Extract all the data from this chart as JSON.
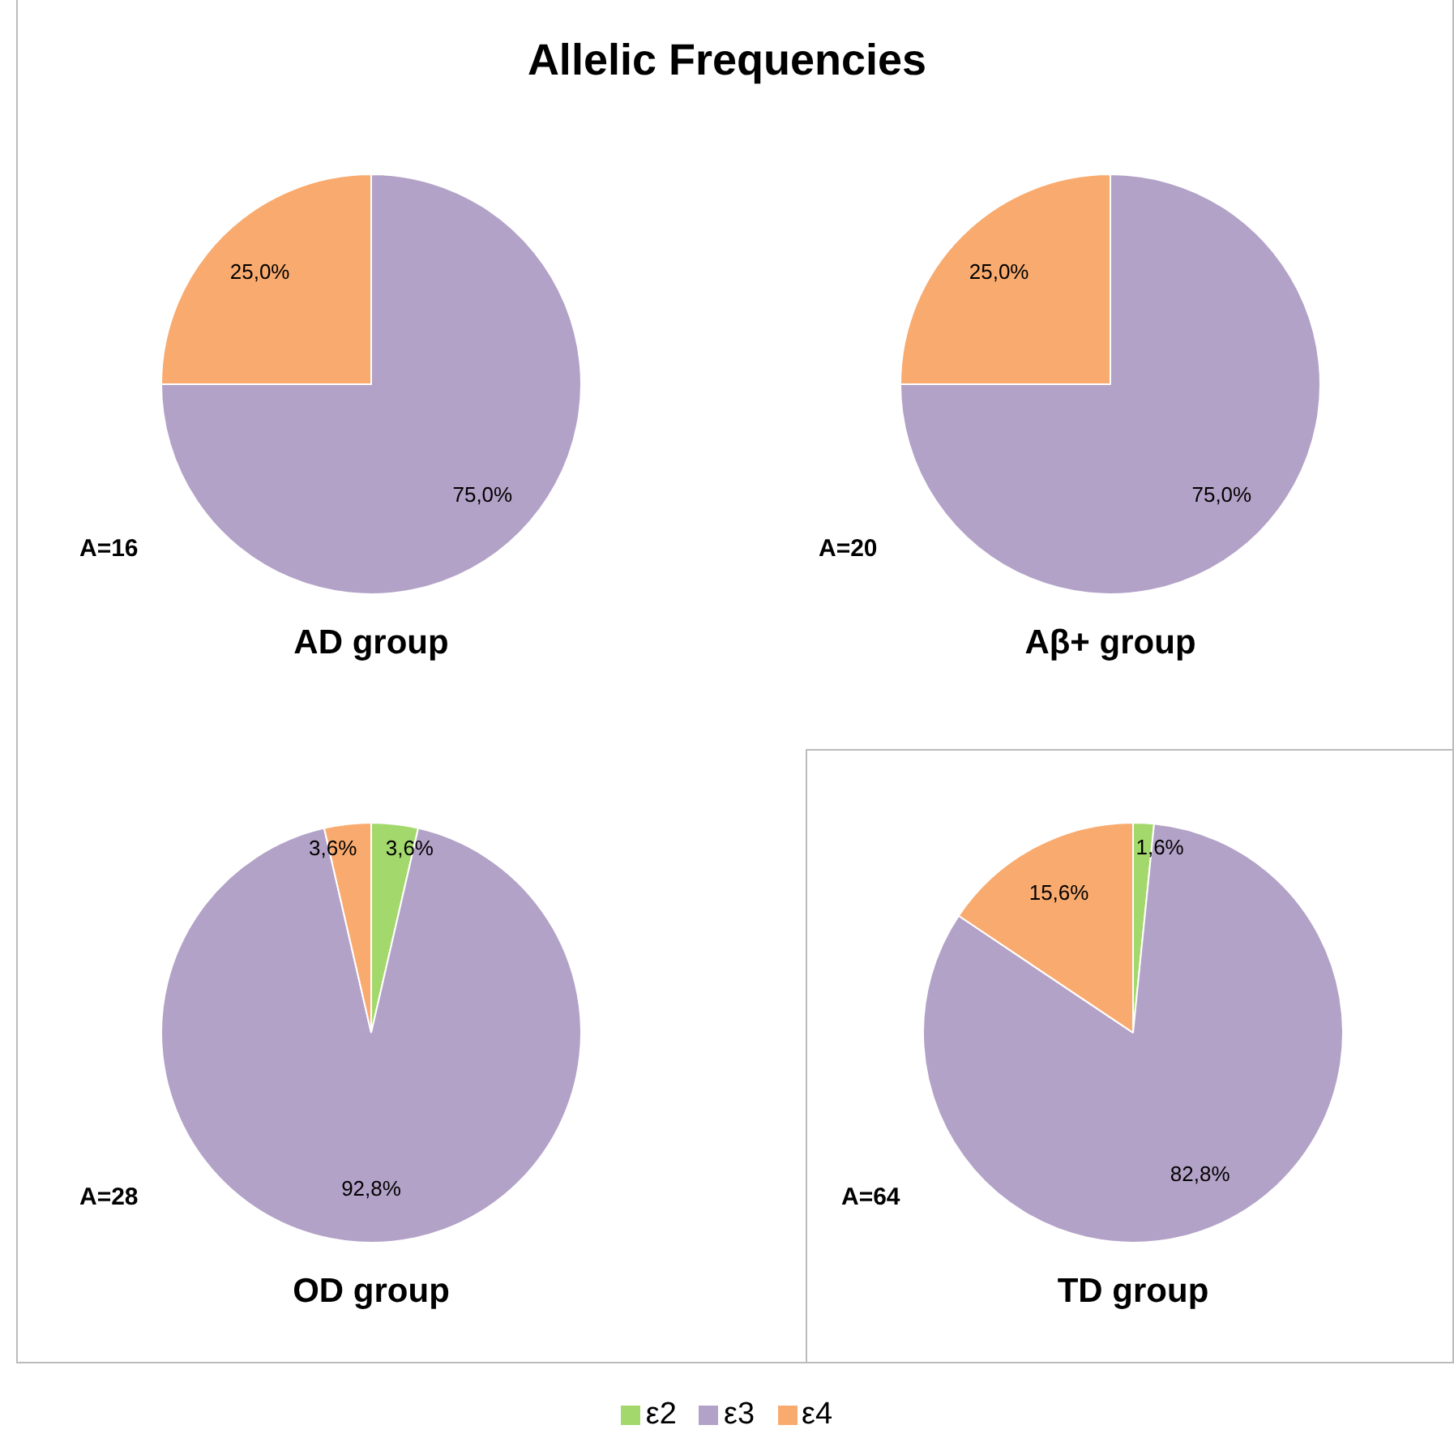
{
  "chart_data": [
    {
      "type": "pie",
      "title": "Allelic Frequencies",
      "xlabel": "AD group",
      "annotations": [
        "A=16"
      ],
      "categories": [
        "ε2",
        "ε3",
        "ε4"
      ],
      "values": [
        0,
        75.0,
        25.0
      ],
      "colors": [
        "#a3d86c",
        "#b3a2c7",
        "#f9ab6f"
      ],
      "value_labels": [
        null,
        "75,0%",
        "25,0%"
      ],
      "legend": "bottom"
    },
    {
      "type": "pie",
      "xlabel": "Aβ+ group",
      "annotations": [
        "A=20"
      ],
      "categories": [
        null,
        null,
        null
      ],
      "values": [
        0,
        75.0,
        25.0
      ],
      "colors": [
        "#a3d86c",
        "#b3a2c7",
        "#f9ab6f"
      ],
      "value_labels": [
        null,
        "75,0%",
        "25,0%"
      ]
    },
    {
      "type": "pie",
      "xlabel": "OD group",
      "annotations": [
        "A=28"
      ],
      "categories": [
        null,
        null,
        null
      ],
      "values": [
        3.6,
        92.8,
        3.6
      ],
      "colors": [
        "#a3d86c",
        "#b3a2c7",
        "#f9ab6f"
      ],
      "value_labels": [
        "3,6%",
        "92,8%",
        "3,6%"
      ]
    },
    {
      "type": "pie",
      "xlabel": "TD  group",
      "annotations": [
        "A=64"
      ],
      "categories": [
        null,
        null,
        null
      ],
      "values": [
        1.6,
        82.8,
        15.6
      ],
      "colors": [
        "#a3d86c",
        "#b3a2c7",
        "#f9ab6f"
      ],
      "value_labels": [
        "1,6%",
        "82,8%",
        "15,6%"
      ]
    }
  ]
}
